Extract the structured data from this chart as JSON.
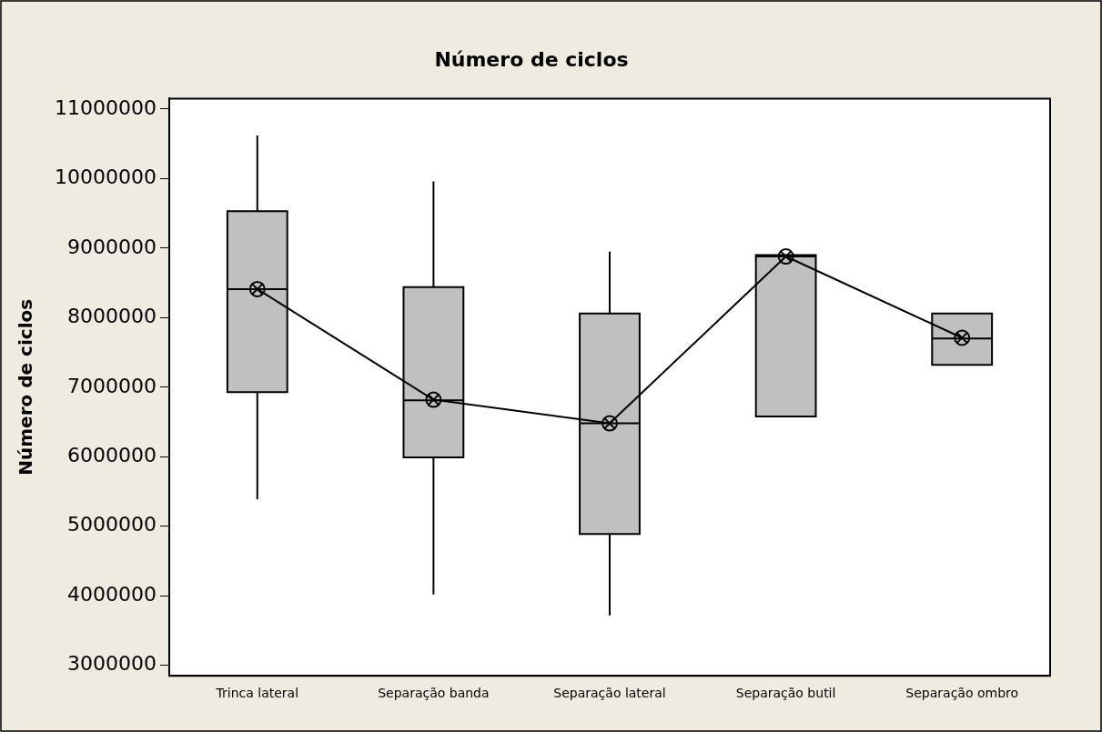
{
  "chart_data": {
    "type": "box",
    "title": "Número de ciclos",
    "ylabel": "Número de ciclos",
    "categories": [
      "Trinca lateral",
      "Separação banda",
      "Separação lateral",
      "Separação butil",
      "Separação ombro"
    ],
    "ylim": [
      2850000,
      11150000
    ],
    "yticks": [
      3000000,
      4000000,
      5000000,
      6000000,
      7000000,
      8000000,
      9000000,
      10000000,
      11000000
    ],
    "grid": false,
    "legend": false,
    "series": [
      {
        "color": "#c0c0c0",
        "boxes": [
          {
            "low": 5390000,
            "q1": 6930000,
            "median": 8410000,
            "q3": 9530000,
            "high": 10620000
          },
          {
            "low": 4020000,
            "q1": 5990000,
            "median": 6810000,
            "q3": 8440000,
            "high": 9960000
          },
          {
            "low": 3720000,
            "q1": 4890000,
            "median": 6480000,
            "q3": 8060000,
            "high": 8950000
          },
          {
            "low": 6580000,
            "q1": 6580000,
            "median": 8880000,
            "q3": 8900000,
            "high": 8900000
          },
          {
            "low": 7320000,
            "q1": 7320000,
            "median": 7700000,
            "q3": 8060000,
            "high": 8060000
          }
        ]
      },
      {
        "type": "line",
        "color": "#000000",
        "marker": "circle",
        "line_style": "solid",
        "values": [
          8410000,
          6820000,
          6480000,
          8880000,
          7710000
        ]
      }
    ]
  }
}
